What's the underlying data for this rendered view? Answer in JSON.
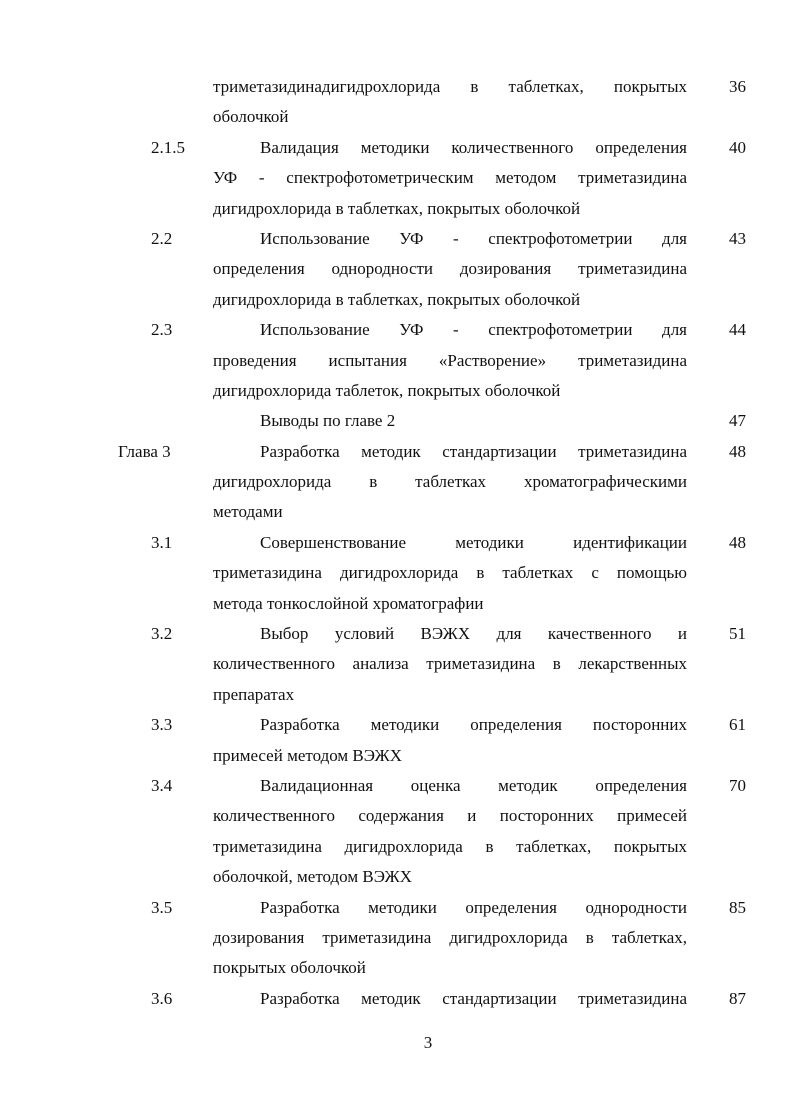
{
  "toc": {
    "entries": [
      {
        "number": "",
        "continued": true,
        "page": "36",
        "lines": [
          "триметазидинадигидрохлорида в таблетках, покрытых",
          "оболочкой"
        ]
      },
      {
        "number": "2.1.5",
        "page": "40",
        "lines": [
          "Валидация методики количественного определения",
          "УФ - спектрофотометрическим методом триметазидина",
          "дигидрохлорида в таблетках, покрытых оболочкой"
        ]
      },
      {
        "number": "2.2",
        "page": "43",
        "lines": [
          "Использование УФ - спектрофотометрии для",
          "определения однородности дозирования триметазидина",
          "дигидрохлорида в таблетках, покрытых оболочкой"
        ]
      },
      {
        "number": "2.3",
        "page": "44",
        "lines": [
          "Использование УФ - спектрофотометрии для",
          "проведения испытания «Растворение» триметазидина",
          "дигидрохлорида таблеток, покрытых оболочкой"
        ]
      },
      {
        "number": "",
        "page": "47",
        "lines": [
          "Выводы по главе 2"
        ]
      },
      {
        "number": "Глава 3",
        "chapter": true,
        "page": "48",
        "lines": [
          "Разработка методик стандартизации триметазидина",
          "дигидрохлорида в таблетках хроматографическими",
          "методами"
        ]
      },
      {
        "number": "3.1",
        "page": "48",
        "lines": [
          "Совершенствование методики идентификации",
          "триметазидина дигидрохлорида в таблетках с помощью",
          "метода тонкослойной хроматографии"
        ]
      },
      {
        "number": "3.2",
        "page": "51",
        "lines": [
          "Выбор условий ВЭЖХ для качественного и",
          "количественного анализа триметазидина в лекарственных",
          "препаратах"
        ]
      },
      {
        "number": "3.3",
        "page": "61",
        "lines": [
          "Разработка методики определения посторонних",
          "примесей методом ВЭЖХ"
        ]
      },
      {
        "number": "3.4",
        "page": "70",
        "lines": [
          "Валидационная оценка методик определения",
          "количественного содержания и посторонних примесей",
          "триметазидина дигидрохлорида в таблетках, покрытых",
          "оболочкой, методом ВЭЖХ"
        ]
      },
      {
        "number": "3.5",
        "page": "85",
        "lines": [
          "Разработка методики определения однородности",
          "дозирования триметазидина дигидрохлорида в таблетках,",
          "покрытых оболочкой"
        ]
      },
      {
        "number": "3.6",
        "page": "87",
        "lines": [
          "Разработка методик стандартизации триметазидина"
        ],
        "cut": true
      }
    ]
  },
  "page_number": "3"
}
